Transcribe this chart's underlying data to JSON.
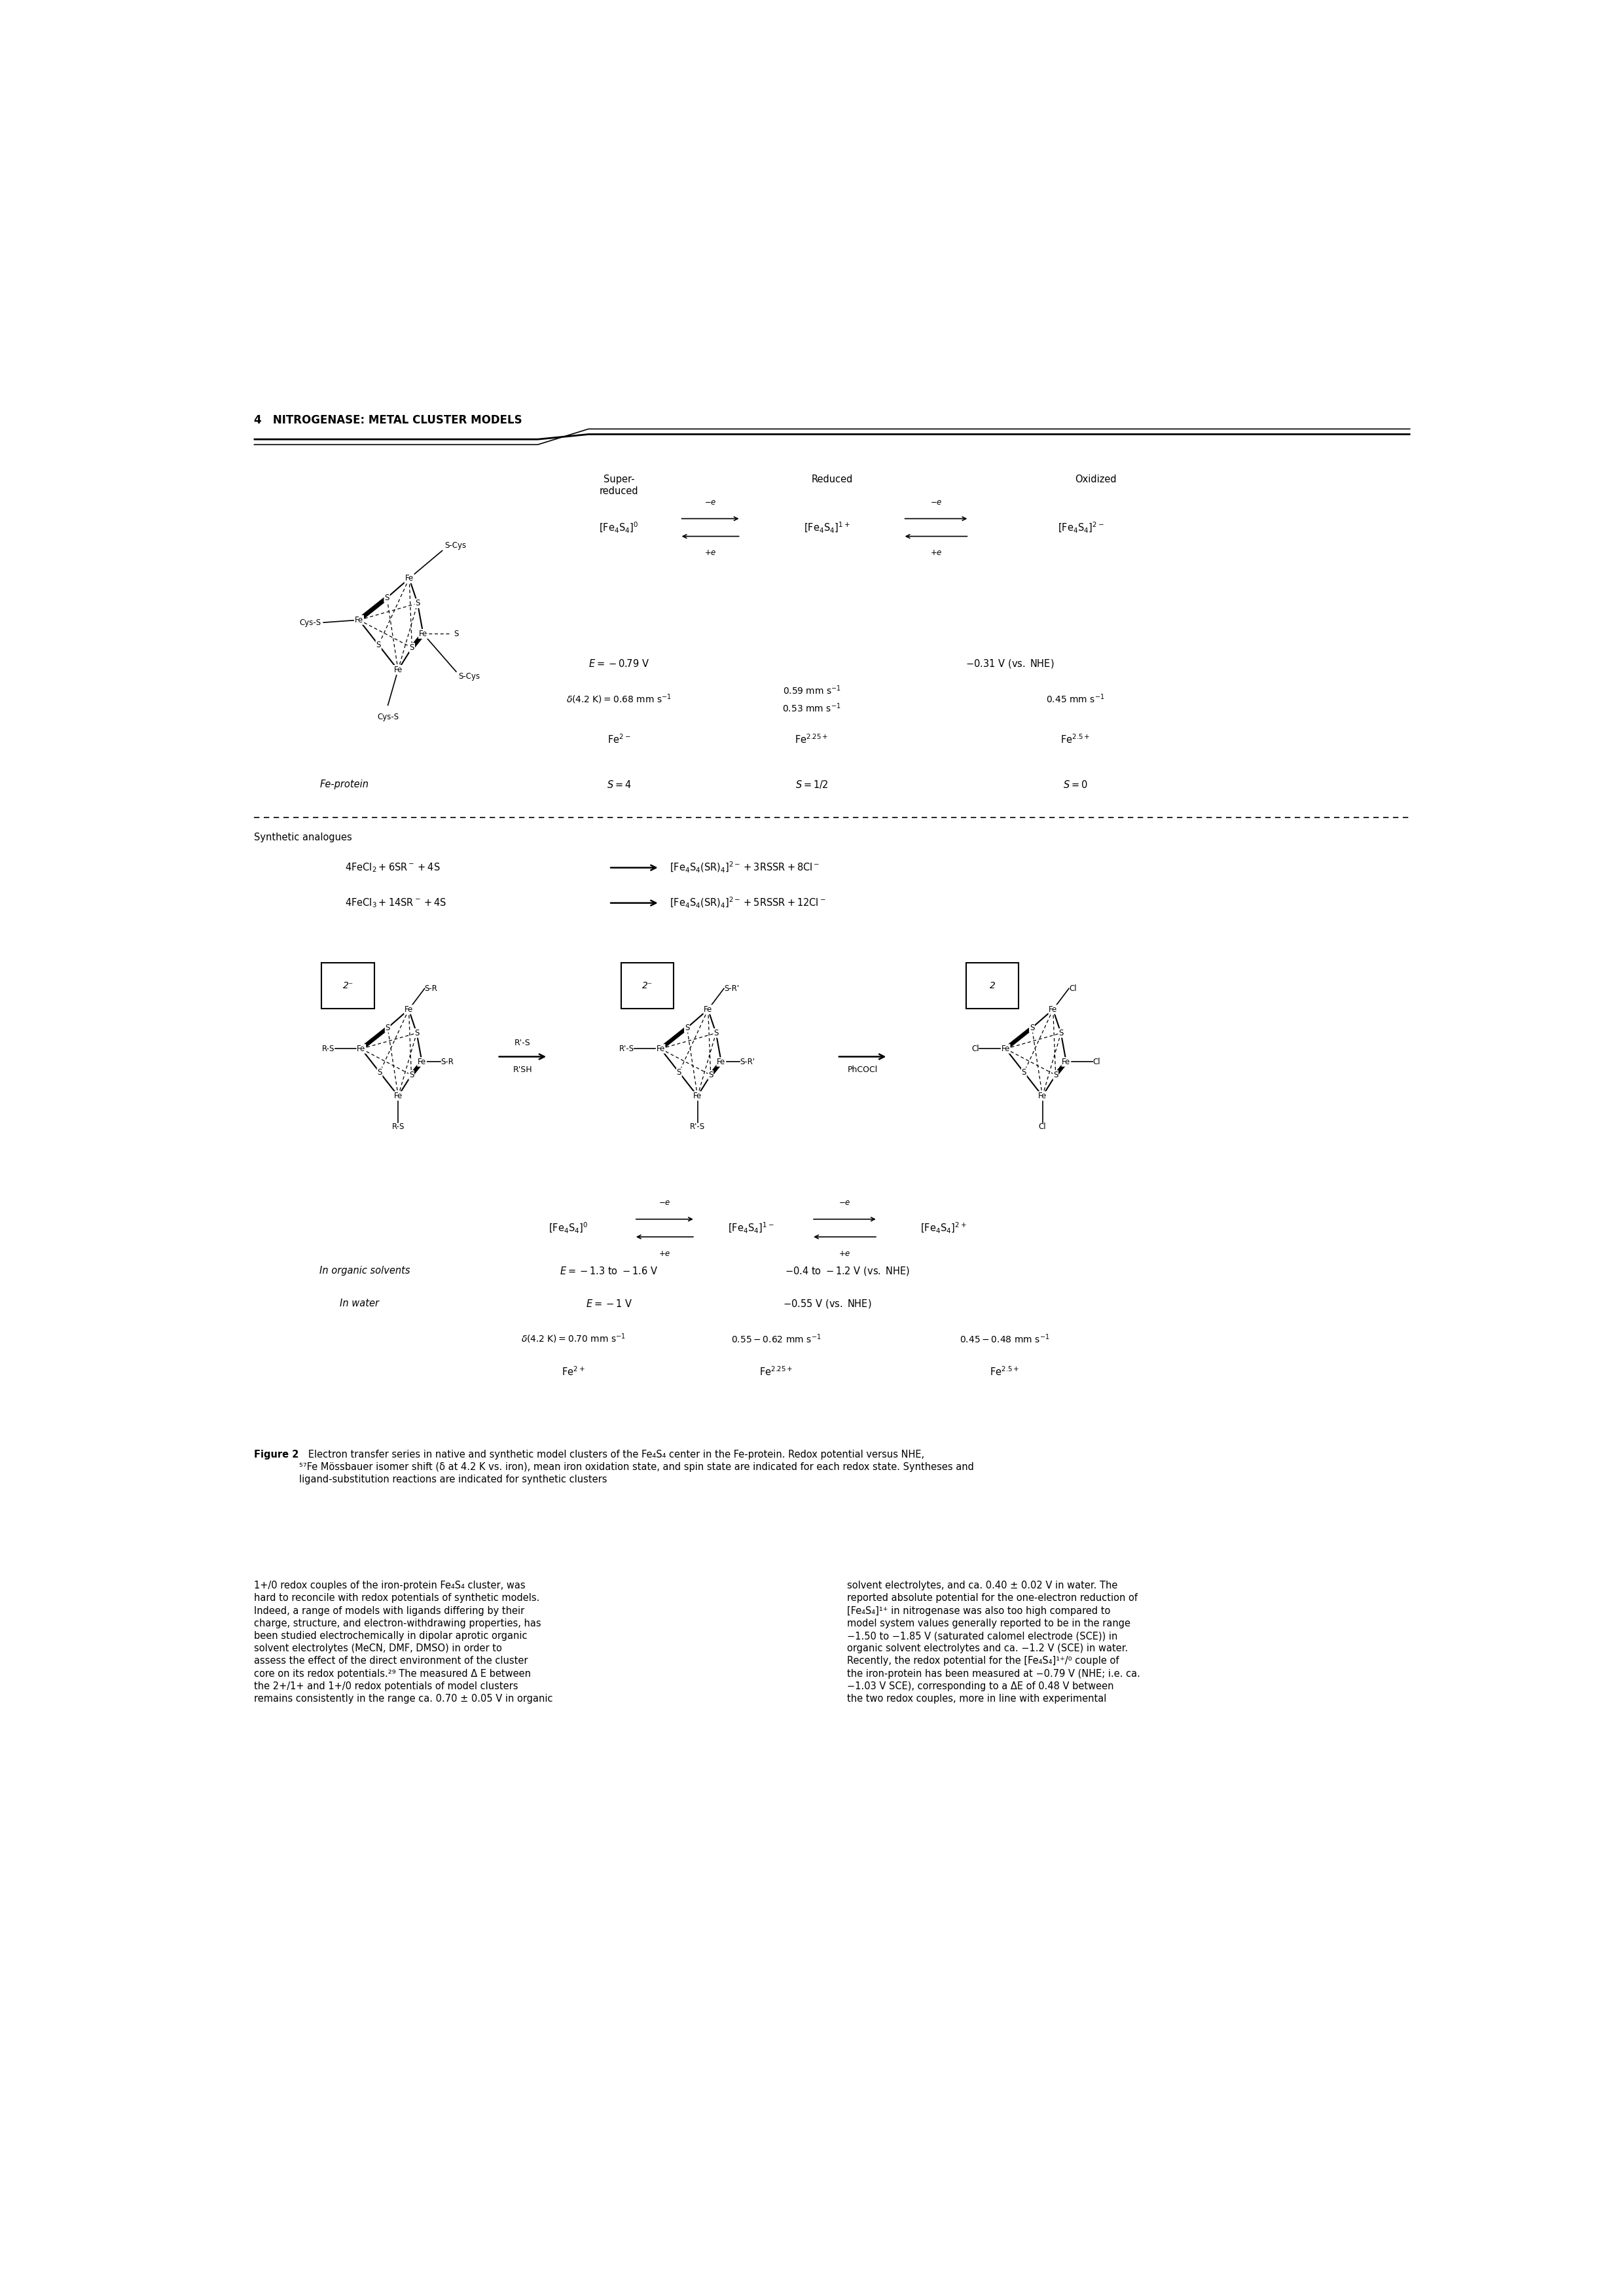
{
  "page_width": 24.81,
  "page_height": 35.08,
  "bg_color": "#ffffff",
  "header_text": "4   NITROGENASE: METAL CLUSTER MODELS",
  "caption_bold": "Figure 2",
  "caption_normal": "   Electron transfer series in native and synthetic model clusters of the Fe₄S₄ center in the Fe-protein. Redox potential versus NHE,\n⁵⁷Fe Mössbauer isomer shift (δ at 4.2 K vs. iron), mean iron oxidation state, and spin state are indicated for each redox state. Syntheses and\nligand-substitution reactions are indicated for synthetic clusters",
  "body_text1": "1+/0 redox couples of the iron-protein Fe₄S₄ cluster, was\nhard to reconcile with redox potentials of synthetic models.\nIndeed, a range of models with ligands differing by their\ncharge, structure, and electron-withdrawing properties, has\nbeen studied electrochemically in dipolar aprotic organic\nsolvent electrolytes (MeCN, DMF, DMSO) in order to\nassess the effect of the direct environment of the cluster\ncore on its redox potentials.²⁹ The measured Δ E between\nthe 2+/1+ and 1+/0 redox potentials of model clusters\nremains consistently in the range ca. 0.70 ± 0.05 V in organic",
  "body_text2": "solvent electrolytes, and ca. 0.40 ± 0.02 V in water. The\nreported absolute potential for the one-electron reduction of\n[Fe₄S₄]¹⁺ in nitrogenase was also too high compared to\nmodel system values generally reported to be in the range\n−1.50 to −1.85 V (saturated calomel electrode (SCE)) in\norganic solvent electrolytes and ca. −1.2 V (SCE) in water.\nRecently, the redox potential for the [Fe₄S₄]¹⁺/⁰ couple of\nthe iron-protein has been measured at −0.79 V (NHE; i.e. ca.\n−1.03 V SCE), corresponding to a ΔE of 0.48 V between\nthe two redox couples, more in line with experimental"
}
